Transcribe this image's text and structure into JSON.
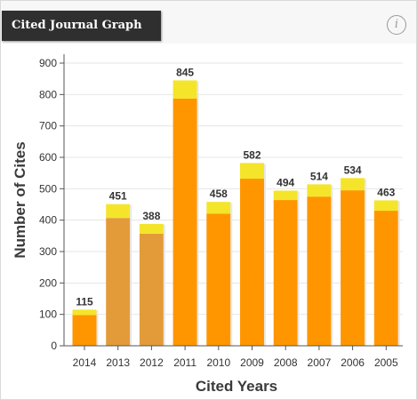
{
  "header": {
    "title": "Cited Journal Graph",
    "info_icon": "info-icon",
    "info_glyph": "i"
  },
  "colors": {
    "bar_orange": "#ff9600",
    "bar_muted": "#e39b3a",
    "bar_top": "#f4e52a",
    "axis": "#555555",
    "grid": "#e6e6e6"
  },
  "chart_data": {
    "type": "bar",
    "title": "",
    "xlabel": "Cited Years",
    "ylabel": "Number of Cites",
    "ylim": [
      0,
      900
    ],
    "yticks": [
      0,
      100,
      200,
      300,
      400,
      500,
      600,
      700,
      800,
      900
    ],
    "categories": [
      "2014",
      "2013",
      "2012",
      "2011",
      "2010",
      "2009",
      "2008",
      "2007",
      "2006",
      "2005"
    ],
    "series": [
      {
        "values": [
          98,
          407,
          357,
          787,
          421,
          532,
          464,
          475,
          495,
          430
        ]
      },
      {
        "values": [
          17,
          44,
          31,
          58,
          37,
          50,
          30,
          39,
          39,
          33
        ]
      }
    ],
    "totals": [
      115,
      451,
      388,
      845,
      458,
      582,
      494,
      514,
      534,
      463
    ],
    "grid": true,
    "legend": "none"
  }
}
